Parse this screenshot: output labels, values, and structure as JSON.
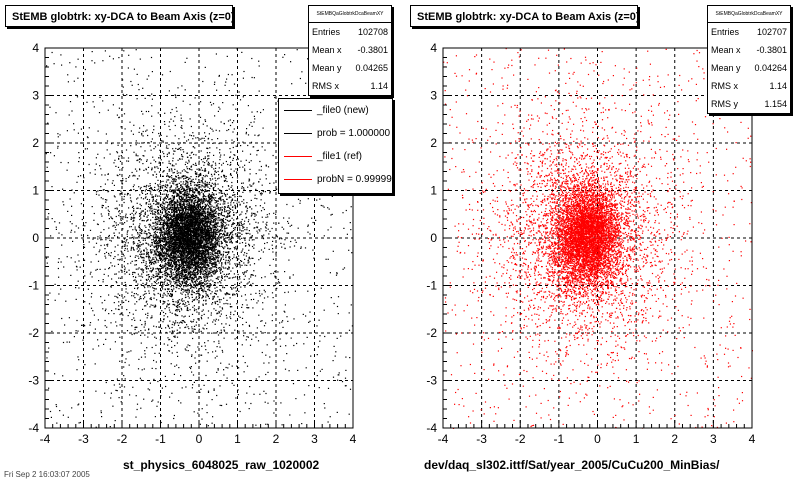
{
  "chart_data": [
    {
      "type": "scatter",
      "title": "StEMB globtrk: xy-DCA to Beam Axis (z=0)",
      "xlabel": "st_physics_6048025_raw_1020002",
      "ylabel": "",
      "xlim": [
        -4,
        4
      ],
      "ylim": [
        -4,
        4
      ],
      "xticks": [
        "-4",
        "-3",
        "-2",
        "-1",
        "0",
        "1",
        "2",
        "3",
        "4"
      ],
      "yticks": [
        "-4",
        "-3",
        "-2",
        "-1",
        "0",
        "1",
        "2",
        "3",
        "4"
      ],
      "grid": true,
      "color": "#000000",
      "stats": {
        "name": "StEMBQaGlobtrkDcaBeamXY",
        "rows": [
          {
            "label": "Entries",
            "value": "102708"
          },
          {
            "label": "Mean x",
            "value": "-0.3801"
          },
          {
            "label": "Mean y",
            "value": "0.04265"
          },
          {
            "label": "RMS x",
            "value": "1.14"
          }
        ]
      },
      "legend": {
        "placement": "right",
        "entries": [
          {
            "label": "_file0 (new)",
            "color": "#000000"
          },
          {
            "label": "prob = 1.000000",
            "color": "#000000"
          },
          {
            "label": "_file1 (ref)",
            "color": "#ff0000"
          },
          {
            "label": "probN = 0.999999",
            "color": "#ff0000"
          }
        ]
      },
      "distribution": {
        "entries": 102708,
        "mean_x": -0.3801,
        "mean_y": 0.04265,
        "rms_x": 1.14,
        "rms_y": 1.154
      }
    },
    {
      "type": "scatter",
      "title": "StEMB globtrk: xy-DCA to Beam Axis (z=0)",
      "xlabel": "dev/daq_sl302.ittf/Sat/year_2005/CuCu200_MinBias/",
      "ylabel": "",
      "xlim": [
        -4,
        4
      ],
      "ylim": [
        -4,
        4
      ],
      "xticks": [
        "-4",
        "-3",
        "-2",
        "-1",
        "0",
        "1",
        "2",
        "3",
        "4"
      ],
      "yticks": [
        "-4",
        "-3",
        "-2",
        "-1",
        "0",
        "1",
        "2",
        "3",
        "4"
      ],
      "grid": true,
      "color": "#ff0000",
      "stats": {
        "name": "StEMBQaGlobtrkDcaBeamXY",
        "rows": [
          {
            "label": "Entries",
            "value": "102707"
          },
          {
            "label": "Mean x",
            "value": "-0.3801"
          },
          {
            "label": "Mean y",
            "value": "0.04264"
          },
          {
            "label": "RMS x",
            "value": "1.14"
          },
          {
            "label": "RMS y",
            "value": "1.154"
          }
        ]
      },
      "distribution": {
        "entries": 102707,
        "mean_x": -0.3801,
        "mean_y": 0.04264,
        "rms_x": 1.14,
        "rms_y": 1.154
      }
    }
  ],
  "footer": "Fri Sep 2 16:03:07 2005"
}
